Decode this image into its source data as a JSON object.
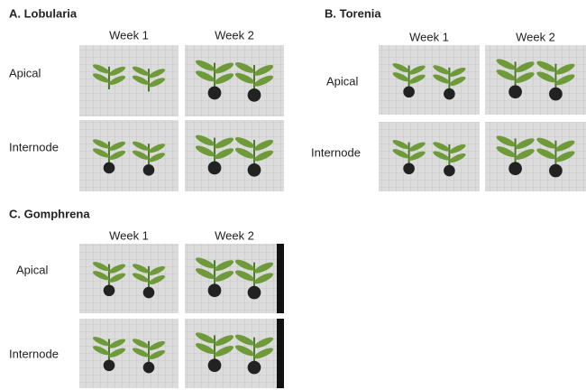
{
  "panels": [
    {
      "title": "A. Lobularia",
      "columns": [
        "Week 1",
        "Week 2"
      ],
      "rows": [
        "Apical",
        "Internode"
      ]
    },
    {
      "title": "B. Torenia",
      "columns": [
        "Week 1",
        "Week 2"
      ],
      "rows": [
        "Apical",
        "Internode"
      ]
    },
    {
      "title": "C. Gomphrena",
      "columns": [
        "Week 1",
        "Week 2"
      ],
      "rows": [
        "Apical",
        "Internode"
      ]
    }
  ]
}
